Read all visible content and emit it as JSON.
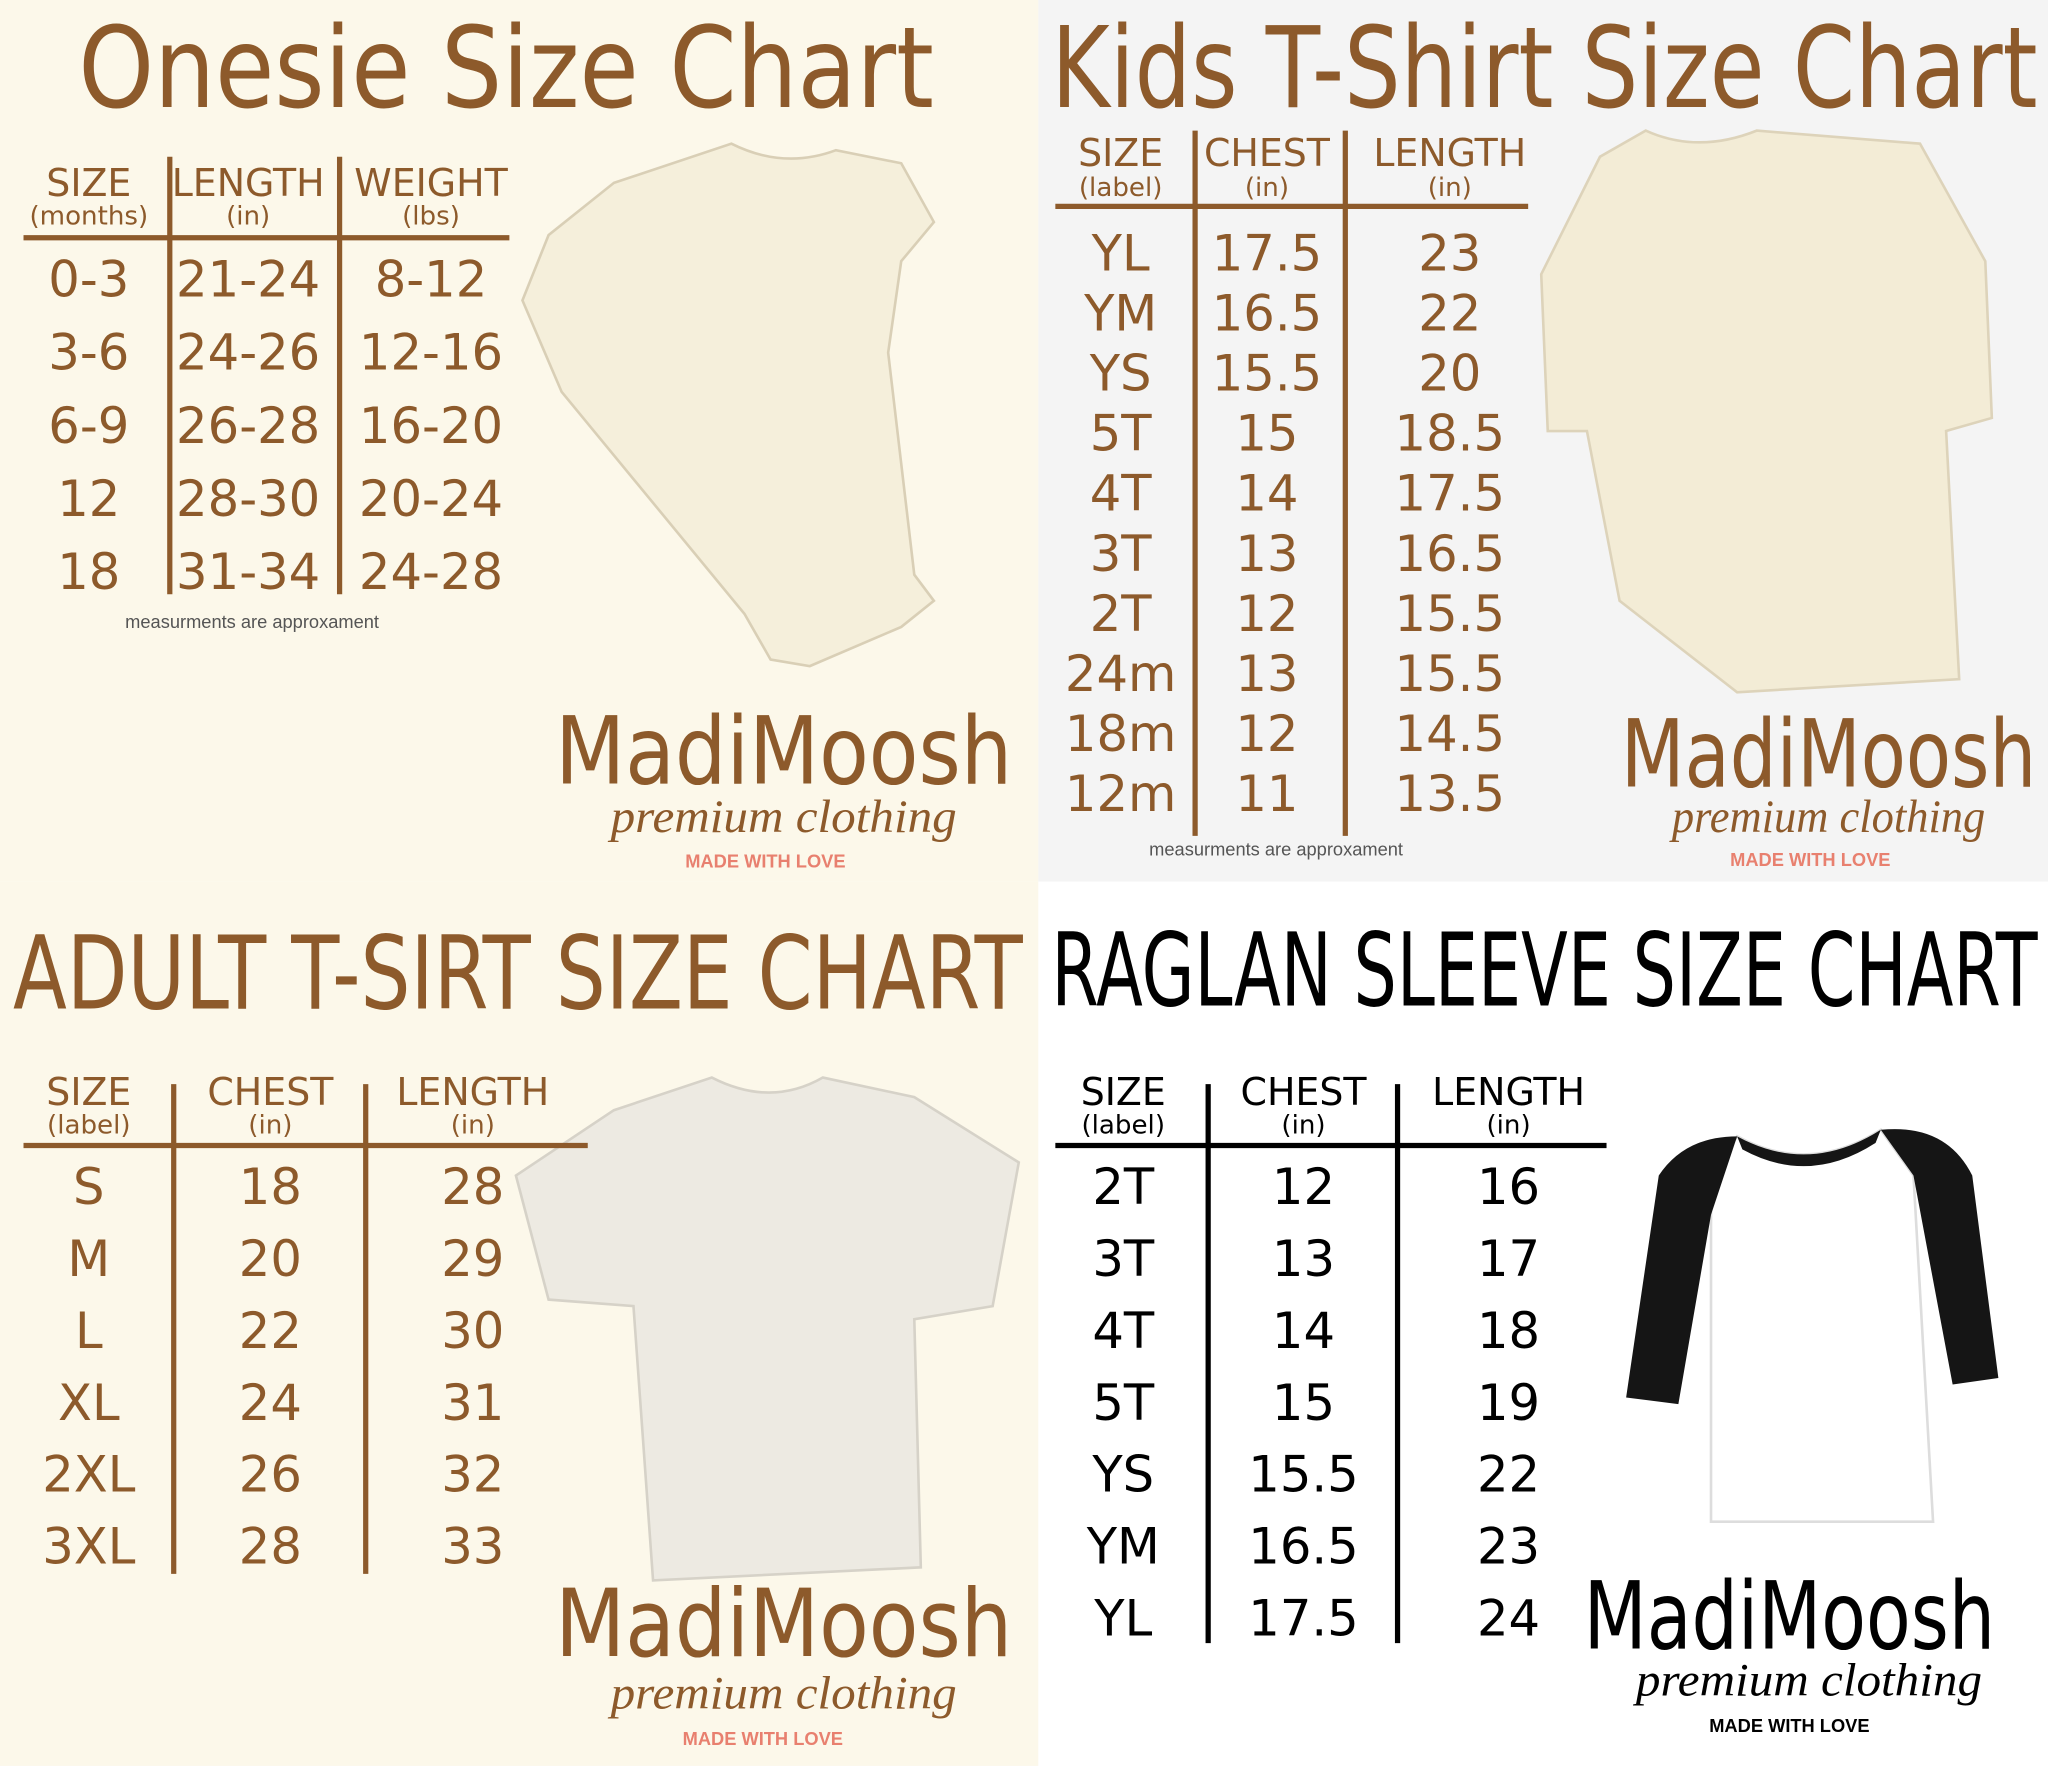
{
  "panels": [
    {
      "title": "Onesie Size Chart",
      "columns": [
        {
          "label": "SIZE",
          "unit": "(months)"
        },
        {
          "label": "LENGTH",
          "unit": "(in)"
        },
        {
          "label": "WEIGHT",
          "unit": "(lbs)"
        }
      ],
      "rows": [
        [
          "0-3",
          "21-24",
          "8-12"
        ],
        [
          "3-6",
          "24-26",
          "12-16"
        ],
        [
          "6-9",
          "26-28",
          "16-20"
        ],
        [
          "12",
          "28-30",
          "20-24"
        ],
        [
          "18",
          "31-34",
          "24-28"
        ]
      ],
      "note": "measurments are approxament",
      "brand": {
        "name": "MadiMoosh",
        "tagline": "premium clothing",
        "motto": "MADE WITH LOVE"
      }
    },
    {
      "title": "Kids T-Shirt Size Chart",
      "columns": [
        {
          "label": "SIZE",
          "unit": "(label)"
        },
        {
          "label": "CHEST",
          "unit": "(in)"
        },
        {
          "label": "LENGTH",
          "unit": "(in)"
        }
      ],
      "rows": [
        [
          "YL",
          "17.5",
          "23"
        ],
        [
          "YM",
          "16.5",
          "22"
        ],
        [
          "YS",
          "15.5",
          "20"
        ],
        [
          "5T",
          "15",
          "18.5"
        ],
        [
          "4T",
          "14",
          "17.5"
        ],
        [
          "3T",
          "13",
          "16.5"
        ],
        [
          "2T",
          "12",
          "15.5"
        ],
        [
          "24m",
          "13",
          "15.5"
        ],
        [
          "18m",
          "12",
          "14.5"
        ],
        [
          "12m",
          "11",
          "13.5"
        ]
      ],
      "note": "measurments are approxament",
      "brand": {
        "name": "MadiMoosh",
        "tagline": "premium clothing",
        "motto": "MADE WITH LOVE"
      }
    },
    {
      "title": "ADULT T-SIRT SIZE CHART",
      "columns": [
        {
          "label": "SIZE",
          "unit": "(label)"
        },
        {
          "label": "CHEST",
          "unit": "(in)"
        },
        {
          "label": "LENGTH",
          "unit": "(in)"
        }
      ],
      "rows": [
        [
          "S",
          "18",
          "28"
        ],
        [
          "M",
          "20",
          "29"
        ],
        [
          "L",
          "22",
          "30"
        ],
        [
          "XL",
          "24",
          "31"
        ],
        [
          "2XL",
          "26",
          "32"
        ],
        [
          "3XL",
          "28",
          "33"
        ]
      ],
      "brand": {
        "name": "MadiMoosh",
        "tagline": "premium clothing",
        "motto": "MADE WITH LOVE"
      }
    },
    {
      "title": "RAGLAN SLEEVE SIZE CHART",
      "columns": [
        {
          "label": "SIZE",
          "unit": "(label)"
        },
        {
          "label": "CHEST",
          "unit": "(in)"
        },
        {
          "label": "LENGTH",
          "unit": "(in)"
        }
      ],
      "rows": [
        [
          "2T",
          "12",
          "16"
        ],
        [
          "3T",
          "13",
          "17"
        ],
        [
          "4T",
          "14",
          "18"
        ],
        [
          "5T",
          "15",
          "19"
        ],
        [
          "YS",
          "15.5",
          "22"
        ],
        [
          "YM",
          "16.5",
          "23"
        ],
        [
          "YL",
          "17.5",
          "24"
        ]
      ],
      "brand": {
        "name": "MadiMoosh",
        "tagline": "premium clothing",
        "motto": "MADE WITH LOVE"
      }
    }
  ]
}
